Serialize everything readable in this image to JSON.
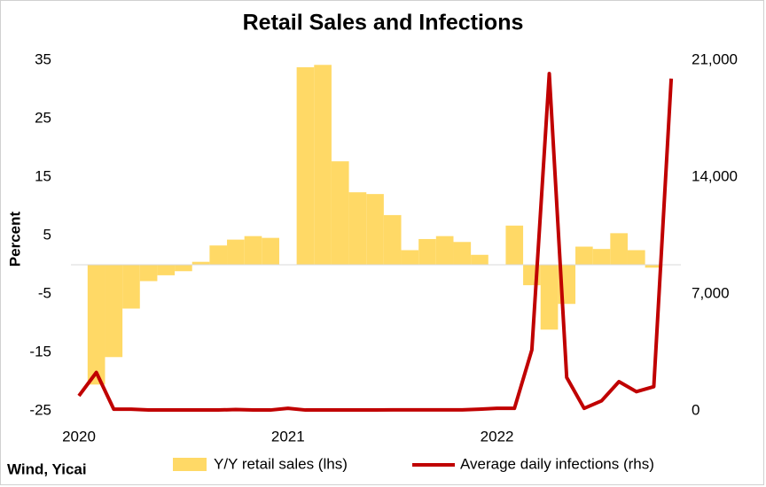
{
  "chart_data": {
    "type": "bar-line",
    "title": "Retail Sales and Infections",
    "ylabel": "Percent",
    "source": "Wind, Yicai",
    "categories": [
      "2020",
      null,
      null,
      null,
      null,
      null,
      null,
      null,
      null,
      null,
      null,
      null,
      "2021",
      null,
      null,
      null,
      null,
      null,
      null,
      null,
      null,
      null,
      null,
      null,
      "2022",
      null,
      null,
      null,
      null,
      null,
      null,
      null,
      null,
      null,
      null
    ],
    "series": [
      {
        "name": "Y/Y retail sales (lhs)",
        "type": "bar",
        "color": "#FFD966",
        "values": [
          null,
          -20.5,
          -15.8,
          -7.5,
          -2.8,
          -1.8,
          -1.1,
          0.5,
          3.3,
          4.3,
          4.9,
          4.6,
          null,
          33.8,
          34.2,
          17.7,
          12.4,
          12.1,
          8.5,
          2.5,
          4.4,
          4.9,
          3.9,
          1.7,
          null,
          6.7,
          -3.5,
          -11.1,
          -6.7,
          3.1,
          2.7,
          5.4,
          2.5,
          -0.5,
          null
        ]
      },
      {
        "name": "Average daily infections (rhs)",
        "type": "line",
        "axis": "y2",
        "color": "#C00000",
        "values": [
          900,
          2300,
          100,
          100,
          50,
          50,
          50,
          50,
          50,
          80,
          50,
          50,
          150,
          50,
          50,
          50,
          50,
          50,
          60,
          60,
          60,
          60,
          60,
          100,
          150,
          150,
          3650,
          20200,
          2000,
          150,
          600,
          1750,
          1150,
          1450,
          19900
        ]
      }
    ],
    "ylim": [
      -25,
      35
    ],
    "yticks": [
      -25,
      -15,
      -5,
      5,
      15,
      25,
      35
    ],
    "y2lim": [
      0,
      21000
    ],
    "y2ticks": [
      0,
      {
        "value": 7000,
        "label": "7,000"
      },
      {
        "value": 14000,
        "label": "14,000"
      },
      {
        "value": 21000,
        "label": "21,000"
      }
    ],
    "grid": false
  }
}
